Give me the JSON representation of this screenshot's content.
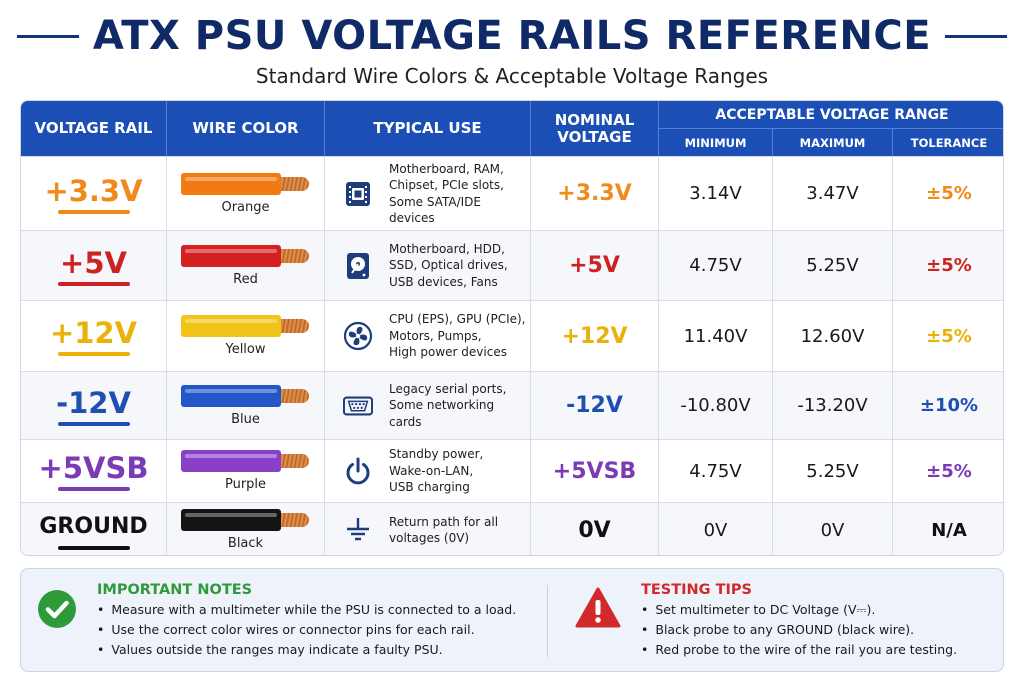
{
  "header": {
    "title": "ATX PSU VOLTAGE RAILS REFERENCE",
    "subtitle": "Standard Wire Colors & Acceptable Voltage Ranges"
  },
  "table": {
    "columns": {
      "rail": "VOLTAGE RAIL",
      "wire": "WIRE COLOR",
      "use": "TYPICAL USE",
      "nominal_line1": "NOMINAL",
      "nominal_line2": "VOLTAGE",
      "range": "ACCEPTABLE VOLTAGE RANGE",
      "min": "MINIMUM",
      "max": "MAXIMUM",
      "tol": "TOLERANCE"
    },
    "rows": [
      {
        "rail": "+3.3V",
        "color": "#f08a1a",
        "wire_color": "#f27a12",
        "wire": "Orange",
        "icon": "cpu-icon",
        "use_lines": [
          "Motherboard, RAM,",
          "Chipset, PCIe slots,",
          "Some SATA/IDE devices"
        ],
        "nominal": "+3.3V",
        "min": "3.14V",
        "max": "3.47V",
        "tol": "±5%",
        "tol_color": "#ef8a17"
      },
      {
        "rail": "+5V",
        "color": "#cc2222",
        "wire_color": "#d42020",
        "wire": "Red",
        "icon": "hard-drive-icon",
        "use_lines": [
          "Motherboard, HDD,",
          "SSD, Optical drives,",
          "USB devices, Fans"
        ],
        "nominal": "+5V",
        "min": "4.75V",
        "max": "5.25V",
        "tol": "±5%",
        "tol_color": "#c8261e"
      },
      {
        "rail": "+12V",
        "color": "#e8b20a",
        "wire_color": "#f2c418",
        "wire": "Yellow",
        "icon": "fan-icon",
        "use_lines": [
          "CPU (EPS), GPU (PCIe),",
          "Motors, Pumps,",
          "High power devices"
        ],
        "nominal": "+12V",
        "min": "11.40V",
        "max": "12.60V",
        "tol": "±5%",
        "tol_color": "#e8b20a"
      },
      {
        "rail": "-12V",
        "color": "#1f4fb0",
        "wire_color": "#2356c8",
        "wire": "Blue",
        "icon": "serial-port-icon",
        "use_lines": [
          "Legacy serial ports,",
          "Some networking",
          "cards"
        ],
        "nominal": "-12V",
        "min": "-10.80V",
        "max": "-13.20V",
        "tol": "±10%",
        "tol_color": "#1f4fb0"
      },
      {
        "rail": "+5VSB",
        "color": "#7a3bb5",
        "wire_color": "#8a3fc8",
        "wire": "Purple",
        "icon": "power-icon",
        "use_lines": [
          "Standby power,",
          "Wake-on-LAN,",
          "USB charging"
        ],
        "nominal": "+5VSB",
        "min": "4.75V",
        "max": "5.25V",
        "tol": "±5%",
        "tol_color": "#7a3bb5"
      },
      {
        "rail": "GROUND",
        "color": "#111111",
        "wire_color": "#141414",
        "wire": "Black",
        "icon": "ground-icon",
        "use_lines": [
          "Return path for all",
          "voltages (0V)"
        ],
        "nominal": "0V",
        "min": "0V",
        "max": "0V",
        "tol": "N/A",
        "tol_color": "#111111"
      }
    ]
  },
  "notes": {
    "important_title": "IMPORTANT NOTES",
    "important_color": "#2e9a3a",
    "important": [
      "Measure with a multimeter while the PSU is connected to a load.",
      "Use the correct color wires or connector pins for each rail.",
      "Values outside the ranges may indicate a faulty PSU."
    ],
    "testing_title": "TESTING TIPS",
    "testing_color": "#d12a2a",
    "testing": [
      "Set multimeter to DC Voltage (V⎓).",
      "Black probe to any GROUND (black wire).",
      "Red probe to the wire of the rail you are testing."
    ]
  }
}
